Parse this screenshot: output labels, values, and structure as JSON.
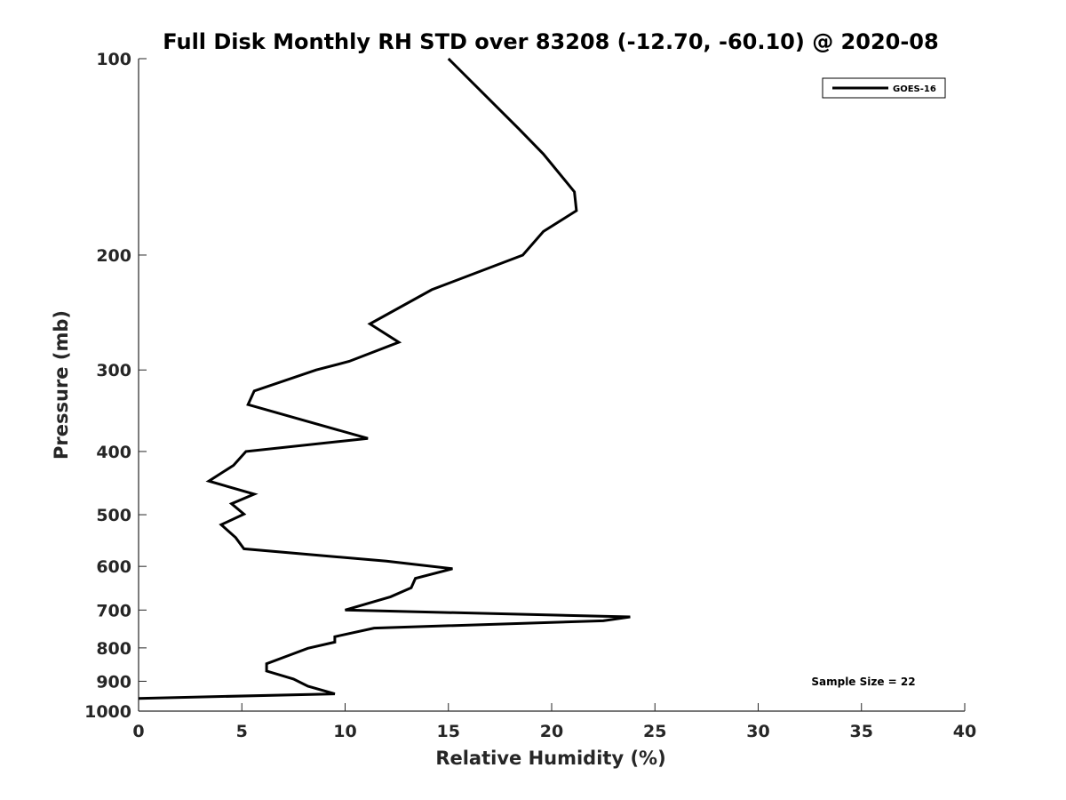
{
  "chart_data": {
    "type": "line",
    "title": "Full Disk Monthly RH STD over 83208 (-12.70, -60.10) @ 2020-08",
    "xlabel": "Relative Humidity (%)",
    "ylabel": "Pressure (mb)",
    "xlim": [
      0,
      40
    ],
    "ylim": [
      100,
      1000
    ],
    "yscale": "log",
    "y_reversed": true,
    "x_ticks": [
      "0",
      "5",
      "10",
      "15",
      "20",
      "25",
      "30",
      "35",
      "40"
    ],
    "y_ticks": [
      "100",
      "200",
      "300",
      "400",
      "500",
      "600",
      "700",
      "800",
      "900",
      "1000"
    ],
    "legend_position": "top-right",
    "grid": false,
    "annotation": "Sample Size = 22",
    "series": [
      {
        "name": "GOES-16",
        "color": "#000000",
        "x": [
          15.0,
          18.4,
          19.6,
          21.1,
          21.2,
          19.6,
          18.6,
          14.2,
          11.2,
          12.6,
          10.2,
          8.6,
          5.6,
          5.3,
          11.1,
          5.2,
          4.6,
          3.4,
          5.6,
          4.5,
          5.1,
          4.0,
          4.7,
          5.1,
          12.0,
          15.2,
          13.4,
          13.2,
          12.2,
          10.0,
          23.8,
          22.5,
          11.4,
          9.5,
          9.5,
          8.2,
          7.3,
          6.2,
          6.2,
          7.5,
          8.2,
          9.5,
          0.0
        ],
        "y": [
          100,
          128,
          140,
          160,
          171,
          184,
          200,
          226,
          255,
          272,
          291,
          300,
          323,
          339,
          382,
          400,
          420,
          444,
          465,
          481,
          499,
          518,
          542,
          564,
          589,
          605,
          626,
          647,
          668,
          700,
          717,
          727,
          746,
          769,
          784,
          801,
          821,
          846,
          868,
          893,
          916,
          941,
          956
        ]
      }
    ]
  }
}
